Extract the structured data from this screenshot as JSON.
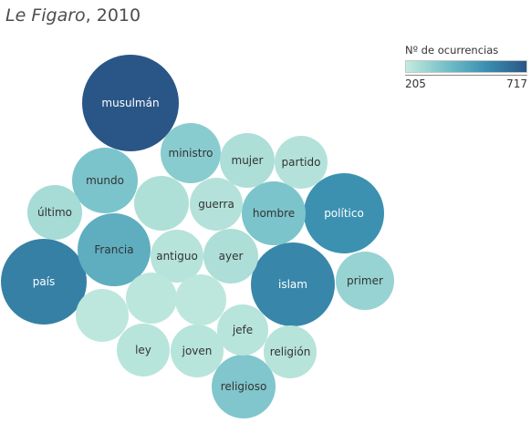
{
  "title": {
    "publication": "Le Figaro",
    "year": ", 2010"
  },
  "legend": {
    "title": "Nº de ocurrencias",
    "min": "205",
    "max": "717",
    "colors": [
      "#c4ebde",
      "#74c0c9",
      "#3a8fb0",
      "#2a5687"
    ]
  },
  "chart_data": {
    "type": "bubble",
    "color_domain": [
      205,
      717
    ],
    "items": [
      {
        "label": "musulmán",
        "value": 717
      },
      {
        "label": "país",
        "value": 590
      },
      {
        "label": "islam",
        "value": 570
      },
      {
        "label": "político",
        "value": 540
      },
      {
        "label": "Francia",
        "value": 440
      },
      {
        "label": "hombre",
        "value": 360
      },
      {
        "label": "mundo",
        "value": 360
      },
      {
        "label": "religioso",
        "value": 350
      },
      {
        "label": "ministro",
        "value": 330
      },
      {
        "label": "primer",
        "value": 300
      },
      {
        "label": "último",
        "value": 270
      },
      {
        "label": "mujer",
        "value": 255
      },
      {
        "label": "ayer",
        "value": 255
      },
      {
        "label": "partido",
        "value": 240
      },
      {
        "label": "guerra",
        "value": 240
      },
      {
        "label": "antiguo",
        "value": 235
      },
      {
        "label": "religión",
        "value": 235
      },
      {
        "label": "jefe",
        "value": 232
      },
      {
        "label": "joven",
        "value": 232
      },
      {
        "label": "ley",
        "value": 230
      },
      {
        "label": "",
        "value": 250
      },
      {
        "label": "",
        "value": 225
      },
      {
        "label": "",
        "value": 220
      },
      {
        "label": "",
        "value": 220
      }
    ]
  }
}
